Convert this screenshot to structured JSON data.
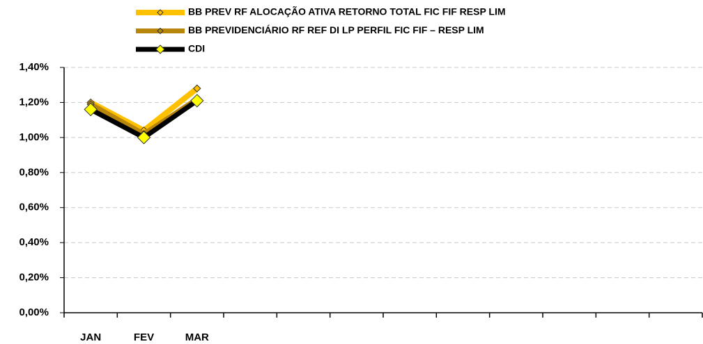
{
  "chart_data": {
    "type": "line",
    "categories": [
      "JAN",
      "FEV",
      "MAR",
      null,
      null,
      null,
      null,
      null,
      null,
      null,
      null,
      null
    ],
    "series": [
      {
        "name": "BB PREV RF ALOCAÇÃO ATIVA RETORNO TOTAL FIC FIF RESP LIM",
        "color": "#ffc000",
        "marker_color": "#ffc000",
        "values": [
          1.2,
          1.04,
          1.28,
          null,
          null,
          null,
          null,
          null,
          null,
          null,
          null,
          null
        ]
      },
      {
        "name": "BB PREVIDENCIÁRIO RF REF DI LP PERFIL FIC FIF – RESP LIM",
        "color": "#b8860b",
        "marker_color": "#b8860b",
        "values": [
          1.19,
          1.02,
          1.22,
          null,
          null,
          null,
          null,
          null,
          null,
          null,
          null,
          null
        ]
      },
      {
        "name": "CDI",
        "color": "#000000",
        "marker_color": "#ffff00",
        "values": [
          1.16,
          1.0,
          1.21,
          null,
          null,
          null,
          null,
          null,
          null,
          null,
          null,
          null
        ]
      }
    ],
    "ylim": [
      0,
      1.4
    ],
    "yticks": [
      {
        "value": 0,
        "label": "0,00%"
      },
      {
        "value": 0.2,
        "label": "0,20%"
      },
      {
        "value": 0.4,
        "label": "0,40%"
      },
      {
        "value": 0.6,
        "label": "0,60%"
      },
      {
        "value": 0.8,
        "label": "0,80%"
      },
      {
        "value": 1.0,
        "label": "1,00%"
      },
      {
        "value": 1.2,
        "label": "1,20%"
      },
      {
        "value": 1.4,
        "label": "1,40%"
      }
    ],
    "grid": true,
    "legend": "top"
  }
}
